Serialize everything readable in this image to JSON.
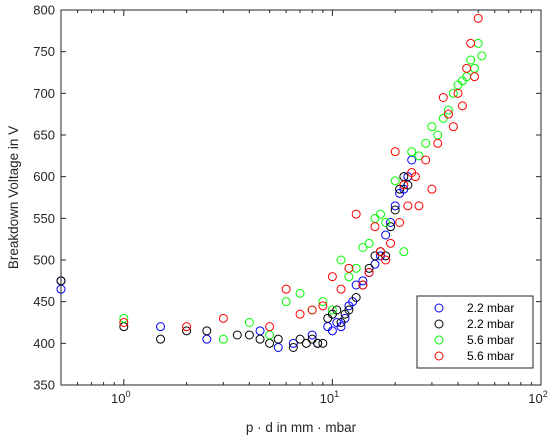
{
  "chart_data": {
    "type": "scatter",
    "xlabel": "p · d in mm · mbar",
    "ylabel": "Breakdown Voltage in V",
    "xscale": "log",
    "xlim": [
      0.5,
      100
    ],
    "ylim": [
      350,
      800
    ],
    "x_ticks": [
      {
        "value": 1,
        "base": "10",
        "exp": "0"
      },
      {
        "value": 10,
        "base": "10",
        "exp": "1"
      },
      {
        "value": 100,
        "base": "10",
        "exp": "2"
      }
    ],
    "y_ticks": [
      350,
      400,
      450,
      500,
      550,
      600,
      650,
      700,
      750,
      800
    ],
    "grid": false,
    "legend_position": "bottom-right",
    "marker": "open-circle",
    "series": [
      {
        "name": "2.2 mbar",
        "color": "#0000ff",
        "x": [
          0.5,
          0.5,
          1.5,
          2.5,
          4.5,
          5.5,
          6.5,
          8,
          8.5,
          9.5,
          10,
          10.5,
          11,
          11.5,
          12,
          12.5,
          13,
          14,
          15,
          16,
          17,
          18,
          19,
          20,
          21,
          22,
          23,
          24
        ],
        "y": [
          475,
          465,
          420,
          405,
          415,
          395,
          400,
          410,
          400,
          420,
          415,
          425,
          420,
          430,
          445,
          450,
          470,
          475,
          485,
          495,
          505,
          530,
          545,
          565,
          580,
          585,
          600,
          620
        ]
      },
      {
        "name": "2.2 mbar",
        "color": "#000000",
        "x": [
          0.5,
          1,
          1.5,
          2,
          2.5,
          3.5,
          4,
          4.5,
          5,
          5.5,
          6.5,
          7,
          7.5,
          8,
          8.5,
          9,
          9.5,
          10,
          10.5,
          11,
          11.5,
          12,
          13,
          14,
          15,
          16,
          17,
          18,
          19,
          20,
          21,
          22,
          23
        ],
        "y": [
          475,
          420,
          405,
          415,
          415,
          410,
          410,
          405,
          400,
          405,
          395,
          405,
          400,
          405,
          400,
          400,
          430,
          435,
          440,
          425,
          435,
          440,
          455,
          470,
          490,
          505,
          510,
          505,
          540,
          560,
          585,
          600,
          590
        ]
      },
      {
        "name": "5.6 mbar",
        "color": "#00ff00",
        "x": [
          1,
          3,
          4,
          5,
          6,
          7,
          8,
          9,
          10,
          11,
          12,
          13,
          14,
          15,
          16,
          17,
          18,
          20,
          22,
          24,
          26,
          28,
          30,
          32,
          34,
          36,
          38,
          40,
          42,
          44,
          46,
          48,
          50,
          52
        ],
        "y": [
          430,
          405,
          425,
          410,
          450,
          460,
          440,
          450,
          440,
          500,
          480,
          490,
          515,
          520,
          550,
          555,
          545,
          595,
          510,
          630,
          625,
          640,
          660,
          650,
          670,
          680,
          700,
          710,
          715,
          720,
          740,
          730,
          760,
          745
        ]
      },
      {
        "name": "5.6 mbar",
        "color": "#ff0000",
        "x": [
          1,
          2,
          3,
          5,
          6,
          7,
          8,
          9,
          10,
          11,
          12,
          13,
          14,
          15,
          16,
          17,
          18,
          19,
          20,
          21,
          22,
          23,
          24,
          25,
          26,
          28,
          30,
          32,
          34,
          36,
          38,
          40,
          42,
          44,
          46,
          48,
          50
        ],
        "y": [
          425,
          420,
          430,
          420,
          465,
          435,
          440,
          445,
          480,
          465,
          490,
          555,
          470,
          485,
          540,
          510,
          500,
          520,
          630,
          545,
          590,
          565,
          605,
          600,
          565,
          620,
          585,
          640,
          695,
          675,
          660,
          700,
          685,
          730,
          760,
          720,
          790
        ]
      }
    ]
  }
}
